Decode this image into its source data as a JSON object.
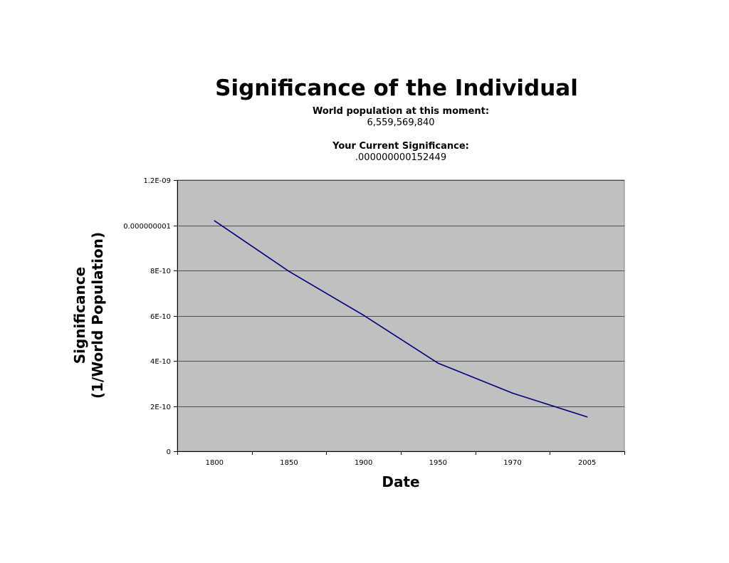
{
  "chart_data": {
    "type": "line",
    "title": "Significance of the Individual",
    "subtitle_lines": [
      "World population at this moment:",
      "6,559,569,840",
      "Your Current Significance:",
      ".000000000152449"
    ],
    "xlabel": "Date",
    "ylabel_lines": [
      "Significance",
      "(1/World Population)"
    ],
    "categories": [
      "1800",
      "1850",
      "1900",
      "1950",
      "1970",
      "2005"
    ],
    "values": [
      1.02e-09,
      7.96e-10,
      6.02e-10,
      3.9e-10,
      2.57e-10,
      1.52e-10
    ],
    "y_ticks": [
      {
        "value": 0,
        "label": "0"
      },
      {
        "value": 2e-10,
        "label": "2E-10"
      },
      {
        "value": 4e-10,
        "label": "4E-10"
      },
      {
        "value": 6e-10,
        "label": "6E-10"
      },
      {
        "value": 8e-10,
        "label": "8E-10"
      },
      {
        "value": 1e-09,
        "label": "0.000000001"
      },
      {
        "value": 1.2e-09,
        "label": "1.2E-09"
      }
    ],
    "ylim": [
      0,
      1.2e-09
    ],
    "grid": true,
    "legend": "none",
    "colors": {
      "plot_background": "#c0c0c0",
      "line": "#000080",
      "gridline": "#000000"
    }
  }
}
